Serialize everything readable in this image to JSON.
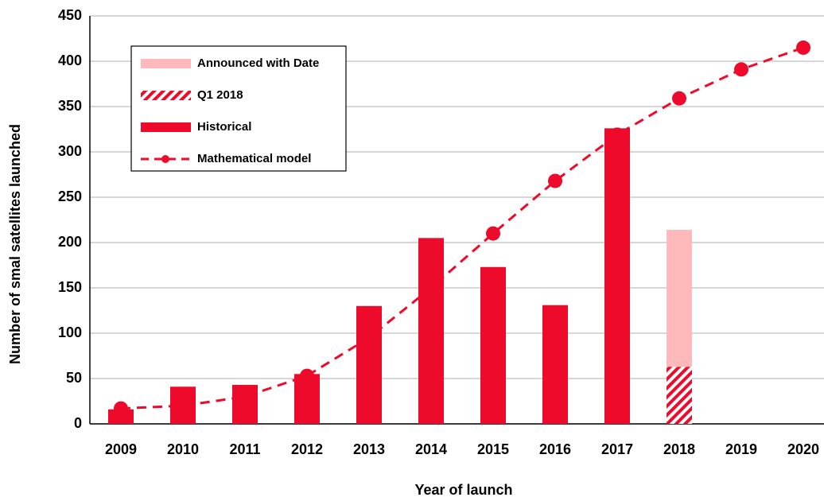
{
  "chart_data": {
    "type": "bar",
    "x_label": "Year of launch",
    "y_label": "Number of smal satellites launched",
    "categories": [
      "2009",
      "2010",
      "2011",
      "2012",
      "2013",
      "2014",
      "2015",
      "2016",
      "2017",
      "2018",
      "2019",
      "2020"
    ],
    "series": [
      {
        "name": "Announced with Date",
        "type": "bar",
        "color": "#ffb9bb",
        "values": [
          null,
          null,
          null,
          null,
          null,
          null,
          null,
          null,
          null,
          151,
          null,
          null
        ]
      },
      {
        "name": "Q1 2018",
        "type": "bar",
        "color": "#ee0a2a",
        "pattern": "hatch",
        "values": [
          null,
          null,
          null,
          null,
          null,
          null,
          null,
          null,
          null,
          63,
          null,
          null
        ]
      },
      {
        "name": "Historical",
        "type": "bar",
        "color": "#ee0a2a",
        "values": [
          16,
          41,
          43,
          55,
          130,
          205,
          173,
          131,
          326,
          null,
          null,
          null
        ]
      },
      {
        "name": "Mathematical model",
        "type": "line",
        "color": "#ee0a2a",
        "values": [
          17,
          20,
          30,
          53,
          95,
          150,
          210,
          268,
          319,
          359,
          391,
          415
        ]
      }
    ],
    "ylim": [
      0,
      450
    ],
    "yticks": [
      0,
      50,
      100,
      150,
      200,
      250,
      300,
      350,
      400,
      450
    ],
    "grid": true
  }
}
